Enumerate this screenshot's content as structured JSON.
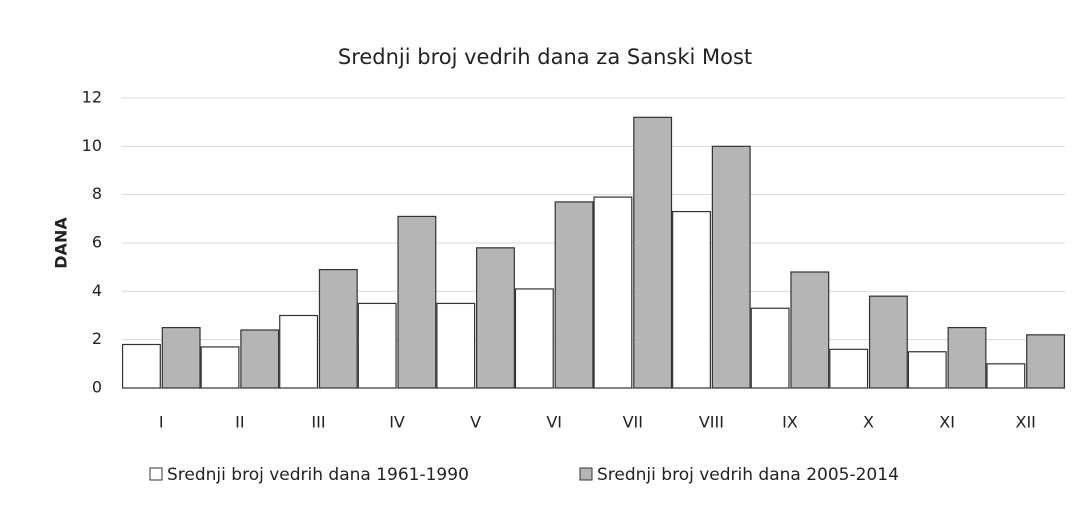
{
  "chart_data": {
    "type": "bar",
    "title": "Srednji broj vedrih dana za Sanski Most",
    "y_label": "DANA",
    "categories": [
      "I",
      "II",
      "III",
      "IV",
      "V",
      "VI",
      "VII",
      "VIII",
      "IX",
      "X",
      "XI",
      "XII"
    ],
    "series": [
      {
        "name": "Srednji broj vedrih dana 1961-1990",
        "color": "#ffffff",
        "values": [
          1.8,
          1.7,
          3.0,
          3.5,
          3.5,
          4.1,
          7.9,
          7.3,
          3.3,
          1.6,
          1.5,
          1.0
        ]
      },
      {
        "name": "Srednji broj vedrih dana 2005-2014",
        "color": "#b5b5b5",
        "values": [
          2.5,
          2.4,
          4.9,
          7.1,
          5.8,
          7.7,
          11.2,
          10.0,
          4.8,
          3.8,
          2.5,
          2.2
        ]
      }
    ],
    "ylim": [
      0,
      12
    ],
    "yticks": [
      0,
      2,
      4,
      6,
      8,
      10,
      12
    ],
    "grid": true,
    "legend": "bottom"
  }
}
